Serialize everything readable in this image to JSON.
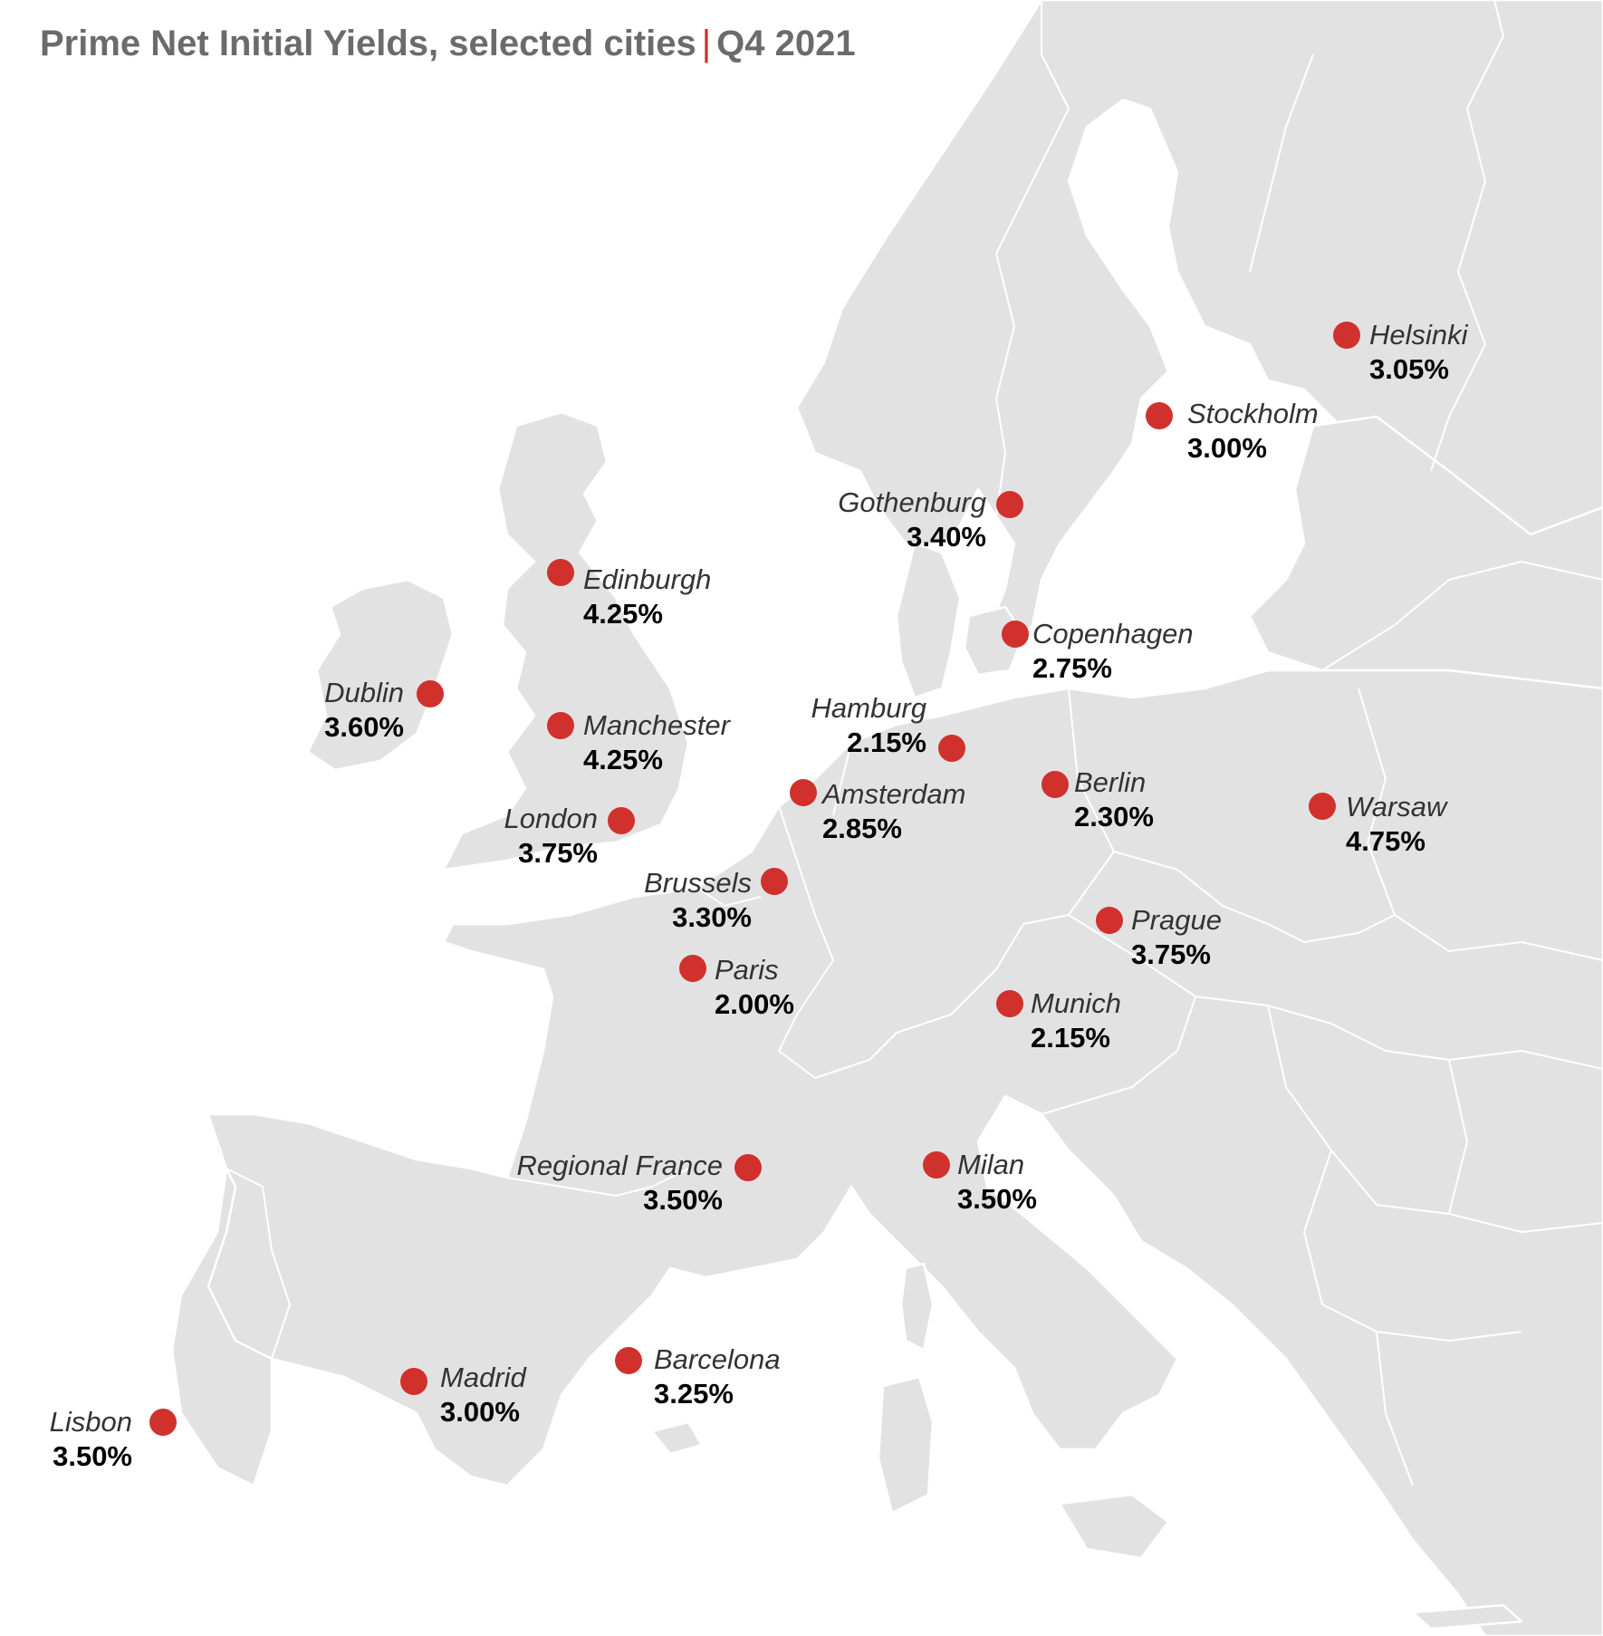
{
  "title": {
    "main": "Prime Net Initial Yields, selected cities",
    "separator": "|",
    "period": "Q4 2021"
  },
  "colors": {
    "marker": "#d0312d",
    "land": "#e2e2e2",
    "border": "#ffffff",
    "title": "#6b6b6b"
  },
  "cities": [
    {
      "name": "Helsinki",
      "value": "3.05%"
    },
    {
      "name": "Stockholm",
      "value": "3.00%"
    },
    {
      "name": "Gothenburg",
      "value": "3.40%"
    },
    {
      "name": "Edinburgh",
      "value": "4.25%"
    },
    {
      "name": "Copenhagen",
      "value": "2.75%"
    },
    {
      "name": "Dublin",
      "value": "3.60%"
    },
    {
      "name": "Hamburg",
      "value": "2.15%"
    },
    {
      "name": "Manchester",
      "value": "4.25%"
    },
    {
      "name": "Amsterdam",
      "value": "2.85%"
    },
    {
      "name": "Berlin",
      "value": "2.30%"
    },
    {
      "name": "Warsaw",
      "value": "4.75%"
    },
    {
      "name": "London",
      "value": "3.75%"
    },
    {
      "name": "Brussels",
      "value": "3.30%"
    },
    {
      "name": "Prague",
      "value": "3.75%"
    },
    {
      "name": "Paris",
      "value": "2.00%"
    },
    {
      "name": "Munich",
      "value": "2.15%"
    },
    {
      "name": "Regional France",
      "value": "3.50%"
    },
    {
      "name": "Milan",
      "value": "3.50%"
    },
    {
      "name": "Barcelona",
      "value": "3.25%"
    },
    {
      "name": "Madrid",
      "value": "3.00%"
    },
    {
      "name": "Lisbon",
      "value": "3.50%"
    }
  ]
}
